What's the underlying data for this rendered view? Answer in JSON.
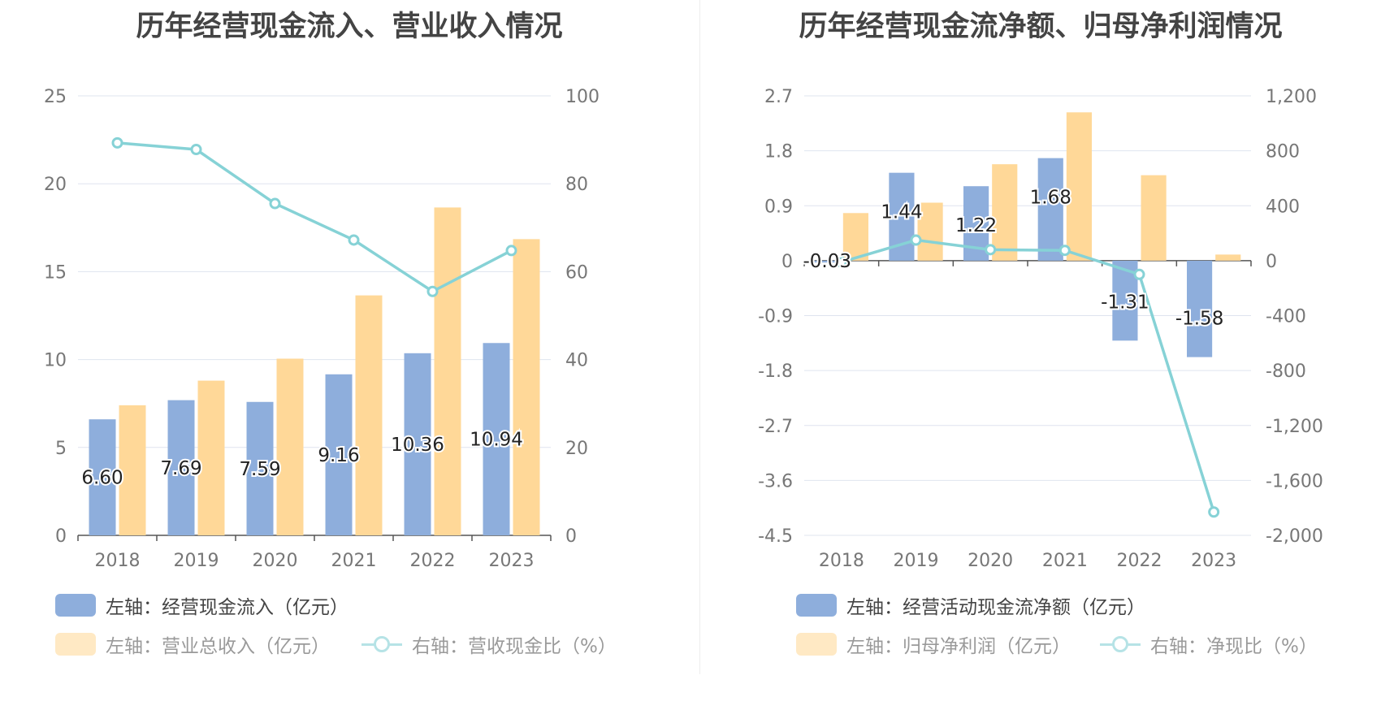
{
  "colors": {
    "bar_primary": "#8eaedc",
    "bar_secondary": "#ffd898",
    "line": "#86d2d6",
    "grid": "#dfe4ef",
    "axis_text": "#777777"
  },
  "chart_data": [
    {
      "type": "bar",
      "title": "历年经营现金流入、营业收入情况",
      "categories": [
        "2018",
        "2019",
        "2020",
        "2021",
        "2022",
        "2023"
      ],
      "left_axis": {
        "ylim": [
          0,
          25
        ],
        "ticks": [
          "0",
          "5",
          "10",
          "15",
          "20",
          "25"
        ]
      },
      "right_axis": {
        "ylim": [
          0,
          100
        ],
        "ticks": [
          "0",
          "20",
          "40",
          "60",
          "80",
          "100"
        ]
      },
      "series": [
        {
          "name": "左轴：经营现金流入（亿元）",
          "kind": "bar",
          "axis": "left",
          "values": [
            6.6,
            7.69,
            7.59,
            9.16,
            10.36,
            10.94
          ],
          "labels": [
            "6.60",
            "7.69",
            "7.59",
            "9.16",
            "10.36",
            "10.94"
          ]
        },
        {
          "name": "左轴：营业总收入（亿元）",
          "kind": "bar",
          "axis": "left",
          "values": [
            7.4,
            8.8,
            10.05,
            13.65,
            18.65,
            16.85
          ]
        },
        {
          "name": "右轴：营收现金比（%）",
          "kind": "line",
          "axis": "right",
          "values": [
            89.3,
            87.8,
            75.5,
            67.2,
            55.5,
            64.8
          ]
        }
      ],
      "legend_position": "bottom"
    },
    {
      "type": "bar",
      "title": "历年经营现金流净额、归母净利润情况",
      "categories": [
        "2018",
        "2019",
        "2020",
        "2021",
        "2022",
        "2023"
      ],
      "left_axis": {
        "ylim": [
          -4.5,
          2.7
        ],
        "ticks": [
          "-4.5",
          "-3.6",
          "-2.7",
          "-1.8",
          "-0.9",
          "0",
          "0.9",
          "1.8",
          "2.7"
        ]
      },
      "right_axis": {
        "ylim": [
          -2000,
          1200
        ],
        "ticks": [
          "-2,000",
          "-1,600",
          "-1,200",
          "-800",
          "-400",
          "0",
          "400",
          "800",
          "1,200"
        ]
      },
      "series": [
        {
          "name": "左轴：经营活动现金流净额（亿元）",
          "kind": "bar",
          "axis": "left",
          "values": [
            -0.03,
            1.44,
            1.22,
            1.68,
            -1.31,
            -1.58
          ],
          "labels": [
            "-0.03",
            "1.44",
            "1.22",
            "1.68",
            "-1.31",
            "-1.58"
          ]
        },
        {
          "name": "左轴：归母净利润（亿元）",
          "kind": "bar",
          "axis": "left",
          "values": [
            0.78,
            0.95,
            1.58,
            2.43,
            1.4,
            0.1
          ]
        },
        {
          "name": "右轴：净现比（%）",
          "kind": "line",
          "axis": "right",
          "values": [
            -10,
            150,
            80,
            75,
            -100,
            -1830
          ]
        }
      ],
      "legend_position": "bottom"
    }
  ]
}
